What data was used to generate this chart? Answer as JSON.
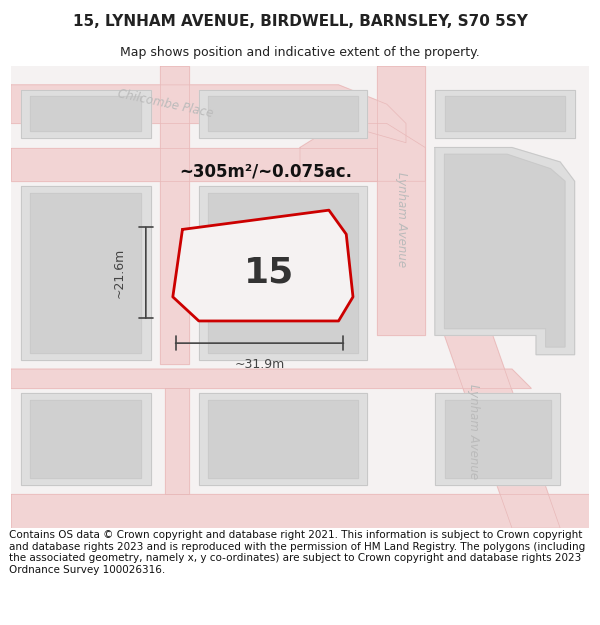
{
  "title": "15, LYNHAM AVENUE, BIRDWELL, BARNSLEY, S70 5SY",
  "subtitle": "Map shows position and indicative extent of the property.",
  "footer": "Contains OS data © Crown copyright and database right 2021. This information is subject to Crown copyright and database rights 2023 and is reproduced with the permission of HM Land Registry. The polygons (including the associated geometry, namely x, y co-ordinates) are subject to Crown copyright and database rights 2023 Ordnance Survey 100026316.",
  "area_label": "~305m²/~0.075ac.",
  "width_label": "~31.9m",
  "height_label": "~21.6m",
  "plot_number": "15",
  "map_bg": "#f7f4f4",
  "road_line_color": "#e8aaaa",
  "building_face_color": "#dedede",
  "building_edge_color": "#c8c8c8",
  "highlight_color": "#cc0000",
  "highlight_fill": "#f5f5f5",
  "title_fontsize": 11,
  "subtitle_fontsize": 9,
  "footer_fontsize": 7.5,
  "street_label_color": "#bbbbbb",
  "dim_color": "#444444",
  "text_dark": "#222222"
}
